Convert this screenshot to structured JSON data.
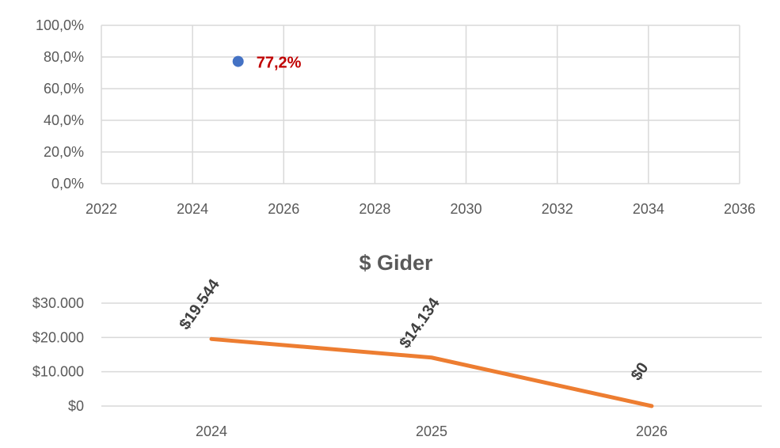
{
  "chart_data": [
    {
      "type": "scatter",
      "title": "",
      "xlim": [
        2022,
        2036
      ],
      "ylim": [
        0,
        100
      ],
      "x_ticks": [
        "2022",
        "2024",
        "2026",
        "2028",
        "2030",
        "2032",
        "2034",
        "2036"
      ],
      "y_ticks": [
        "0,0%",
        "20,0%",
        "40,0%",
        "60,0%",
        "80,0%",
        "100,0%"
      ],
      "grid": true,
      "points": [
        {
          "x": 2025,
          "y": 77.2,
          "label": "77,2%"
        }
      ],
      "marker_color": "#4472c4",
      "label_color": "#c00000"
    },
    {
      "type": "line",
      "title": "$ Gider",
      "categories": [
        "2024",
        "2025",
        "2026"
      ],
      "series": [
        {
          "values": [
            19544,
            14134,
            0
          ],
          "labels": [
            "$19.544",
            "$14.134",
            "$0"
          ]
        }
      ],
      "ylim": [
        0,
        30000
      ],
      "y_ticks": [
        "$0",
        "$10.000",
        "$20.000",
        "$30.000"
      ],
      "grid": true,
      "line_color": "#ed7d31"
    }
  ]
}
